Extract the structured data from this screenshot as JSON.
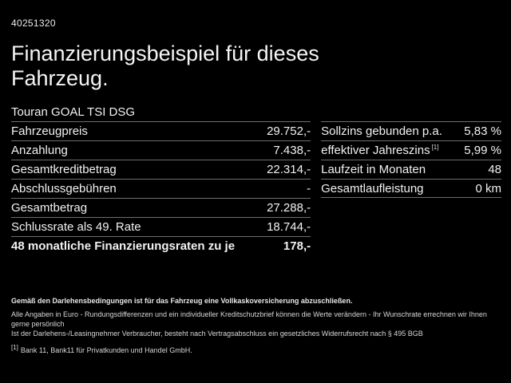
{
  "page": {
    "doc_id": "40251320",
    "title": {
      "line1": "Finanzierungsbeispiel für dieses",
      "line2": "Fahrzeug."
    },
    "vehicle_name": "Touran GOAL TSI DSG"
  },
  "finance_table": {
    "rows": [
      {
        "label": "Fahrzeugpreis",
        "value": "29.752,-"
      },
      {
        "label": "Anzahlung",
        "value": "7.438,-"
      },
      {
        "label": "Gesamtkreditbetrag",
        "value": "22.314,-"
      },
      {
        "label": "Abschlussgebühren",
        "value": "-"
      },
      {
        "label": "Gesamtbetrag",
        "value": "27.288,-"
      },
      {
        "label": "Schlussrate als 49. Rate",
        "value": "18.744,-"
      }
    ],
    "total_row": {
      "label": "48 monatliche Finanzierungsraten zu je",
      "value": "178,-"
    }
  },
  "conditions_table": {
    "rows": [
      {
        "label": "Sollzins gebunden p.a.",
        "value": "5,83 %"
      },
      {
        "label": "effektiver Jahreszins",
        "footnote_marker": "[1]",
        "value": "5,99 %"
      },
      {
        "label": "Laufzeit in Monaten",
        "value": "48"
      },
      {
        "label": "Gesamtlaufleistung",
        "value": "0 km"
      }
    ]
  },
  "footer": {
    "insurance_note": "Gemäß den Darlehensbedingungen ist für das Fahrzeug eine Vollkaskoversicherung abzuschließen.",
    "disclaimer_line1": "Alle Angaben in Euro - Rundungsdifferenzen und ein individueller Kreditschutzbrief können die Werte verändern - Ihr Wunschrate errechnen wir Ihnen gerne persönlich",
    "disclaimer_line2": "Ist der Darlehens-/Leasingnehmer Verbraucher, besteht nach Vertragsabschluss ein gesetzliches Widerrufsrecht nach § 495 BGB",
    "footnote_marker": "[1]",
    "footnote_text": "Bank 11, Bank11 für Privatkunden und Handel GmbH."
  },
  "colors": {
    "background": "#000000",
    "text": "#f2f2f2",
    "separator": "#6e6e6e"
  }
}
